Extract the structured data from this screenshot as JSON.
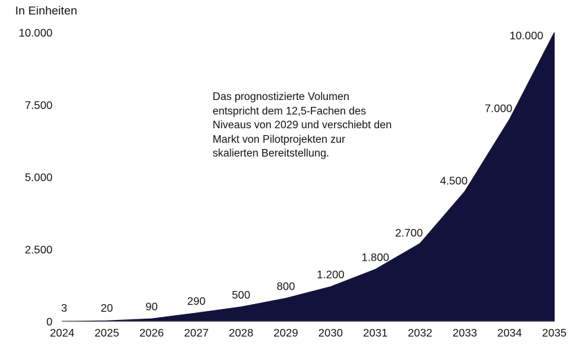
{
  "chart_data": {
    "type": "area",
    "unit_label": "In Einheiten",
    "x": [
      "2024",
      "2025",
      "2026",
      "2027",
      "2028",
      "2029",
      "2030",
      "2031",
      "2032",
      "2033",
      "2034",
      "2035"
    ],
    "values": [
      3,
      20,
      90,
      290,
      500,
      800,
      1200,
      1800,
      2700,
      4500,
      7000,
      10000
    ],
    "data_labels": [
      "3",
      "20",
      "90",
      "290",
      "500",
      "800",
      "1.200",
      "1.800",
      "2.700",
      "4.500",
      "7.000",
      "10.000"
    ],
    "y_ticks": [
      0,
      2500,
      5000,
      7500,
      10000
    ],
    "y_tick_labels": [
      "0",
      "2.500",
      "5.000",
      "7.500",
      "10.000"
    ],
    "ylim": [
      0,
      10000
    ],
    "grid": false,
    "legend": "none",
    "colors": {
      "area": "#13123d"
    },
    "annotation": [
      "Das prognostizierte Volumen",
      "entspricht dem 12,5-Fachen des",
      "Niveaus von 2029 und verschiebt den",
      "Markt von Pilotprojekten zur",
      "skalierten Bereitstellung."
    ]
  }
}
